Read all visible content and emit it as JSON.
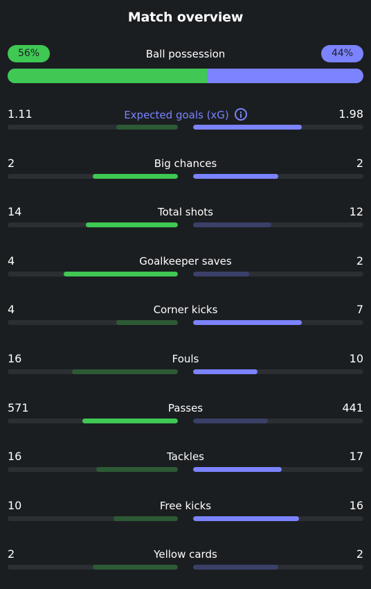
{
  "title": "Match overview",
  "possession": {
    "label": "Ball possession",
    "home": "56%",
    "away": "44%",
    "home_fraction": 0.56
  },
  "colors": {
    "home": "#3fc853",
    "away": "#7b83ff"
  },
  "stats": [
    {
      "label": "Expected goals (xG)",
      "home": "1.11",
      "away": "1.98",
      "home_frac": 0.36,
      "away_frac": 0.64,
      "winner": "away",
      "highlight": true,
      "info_icon": "info-icon"
    },
    {
      "label": "Big chances",
      "home": "2",
      "away": "2",
      "home_frac": 0.5,
      "away_frac": 0.5,
      "winner": "both"
    },
    {
      "label": "Total shots",
      "home": "14",
      "away": "12",
      "home_frac": 0.54,
      "away_frac": 0.46,
      "winner": "home"
    },
    {
      "label": "Goalkeeper saves",
      "home": "4",
      "away": "2",
      "home_frac": 0.67,
      "away_frac": 0.33,
      "winner": "home"
    },
    {
      "label": "Corner kicks",
      "home": "4",
      "away": "7",
      "home_frac": 0.36,
      "away_frac": 0.64,
      "winner": "away"
    },
    {
      "label": "Fouls",
      "home": "16",
      "away": "10",
      "home_frac": 0.62,
      "away_frac": 0.38,
      "winner": "away"
    },
    {
      "label": "Passes",
      "home": "571",
      "away": "441",
      "home_frac": 0.56,
      "away_frac": 0.44,
      "winner": "home"
    },
    {
      "label": "Tackles",
      "home": "16",
      "away": "17",
      "home_frac": 0.48,
      "away_frac": 0.52,
      "winner": "away"
    },
    {
      "label": "Free kicks",
      "home": "10",
      "away": "16",
      "home_frac": 0.38,
      "away_frac": 0.62,
      "winner": "away"
    },
    {
      "label": "Yellow cards",
      "home": "2",
      "away": "2",
      "home_frac": 0.5,
      "away_frac": 0.5,
      "winner": "none"
    }
  ]
}
